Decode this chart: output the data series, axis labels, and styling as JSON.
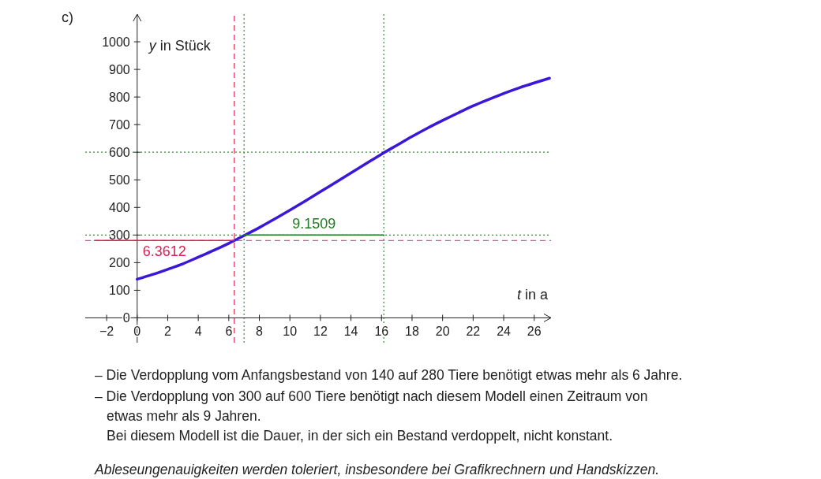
{
  "chart_data": {
    "type": "line",
    "title": "c)",
    "xlabel": "t in a",
    "ylabel": "y in Stück",
    "xlim": [
      -3.4,
      27.1
    ],
    "ylim": [
      -90,
      1100
    ],
    "xticks": [
      -2,
      0,
      2,
      4,
      6,
      8,
      10,
      12,
      14,
      16,
      18,
      20,
      22,
      24,
      26
    ],
    "yticks": [
      0,
      100,
      200,
      300,
      400,
      500,
      600,
      700,
      800,
      900,
      1000
    ],
    "marker": "none",
    "series": [
      {
        "color": "#3b17d9",
        "x": [
          0,
          1,
          2,
          3,
          4,
          5,
          6,
          7,
          8,
          9,
          10,
          11,
          12,
          13,
          14,
          15,
          16,
          17,
          18,
          19,
          20,
          21,
          22,
          23,
          24,
          25,
          26,
          27
        ],
        "values": [
          140,
          157,
          176,
          196,
          220,
          244,
          270,
          298,
          327,
          358,
          390,
          423,
          457,
          491,
          525,
          559,
          593,
          625,
          657,
          687,
          715,
          742,
          768,
          791,
          813,
          833,
          851,
          868
        ]
      },
      {
        "type": "line",
        "color": "#dc1e50",
        "x": [
          -2.8,
          6.3612
        ],
        "values": [
          280,
          280
        ]
      },
      {
        "type": "line",
        "color": "#1e7a1e",
        "x": [
          7,
          16.1509
        ],
        "values": [
          300,
          300
        ]
      }
    ],
    "ref_lines": [
      {
        "axis": "x",
        "value": 6.3612,
        "color": "#dc1e50",
        "line_style": "dashed"
      },
      {
        "axis": "x",
        "value": 7,
        "color": "#3a8a3a",
        "line_style": "dotted"
      },
      {
        "axis": "x",
        "value": 16.1509,
        "color": "#3a8a3a",
        "line_style": "dotted"
      },
      {
        "axis": "y",
        "value": 280,
        "color": "#e0508c",
        "line_style": "dashed"
      },
      {
        "axis": "y",
        "value": 300,
        "color": "#3a8a3a",
        "line_style": "dotted"
      },
      {
        "axis": "y",
        "value": 600,
        "color": "#3a8a3a",
        "line_style": "dotted"
      }
    ],
    "annotations": [
      "6.3612",
      "9.1509",
      "– Die Verdopplung vom Anfangsbestand von 140 auf 280 Tiere benötigt etwas mehr als 6 Jahre.",
      "– Die Verdopplung von 300 auf 600 Tiere benötigt nach diesem Modell einen Zeitraum von\netwas mehr als 9 Jahren.\nBei diesem Modell ist die Dauer, in der sich ein Bestand verdoppelt, nicht konstant.",
      "Ableseungenauigkeiten werden toleriert, insbesondere bei Grafikrechnern und Handskizzen."
    ]
  }
}
